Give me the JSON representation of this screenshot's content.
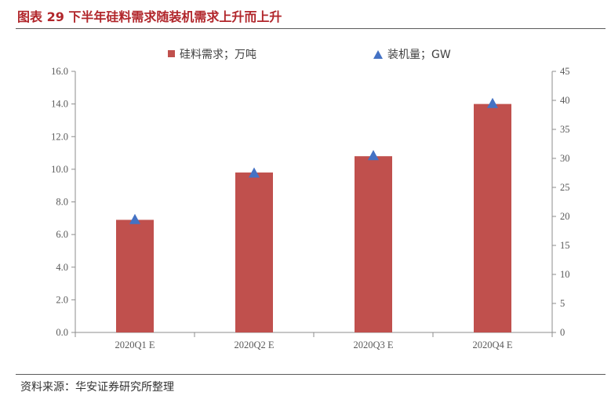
{
  "header": {
    "title": "图表 29 下半年硅料需求随装机需求上升而上升"
  },
  "footer": {
    "source": "资料来源：华安证券研究所整理"
  },
  "chart_data": {
    "type": "bar",
    "categories": [
      "2020Q1 E",
      "2020Q2 E",
      "2020Q3 E",
      "2020Q4 E"
    ],
    "series": [
      {
        "name": "硅料需求；万吨",
        "type": "bar",
        "axis": "left",
        "color": "#c0504d",
        "values": [
          6.9,
          9.8,
          10.8,
          14.0
        ]
      },
      {
        "name": "装机量；GW",
        "type": "scatter",
        "marker": "triangle",
        "axis": "right",
        "color": "#4472c4",
        "values": [
          19.5,
          27.5,
          30.5,
          39.5
        ]
      }
    ],
    "y_left": {
      "ylim": [
        0,
        16
      ],
      "ticks": [
        0,
        2,
        4,
        6,
        8,
        10,
        12,
        14,
        16
      ],
      "tick_labels": [
        "0.0",
        "2.0",
        "4.0",
        "6.0",
        "8.0",
        "10.0",
        "12.0",
        "14.0",
        "16.0"
      ]
    },
    "y_right": {
      "ylim": [
        0,
        45
      ],
      "ticks": [
        0,
        5,
        10,
        15,
        20,
        25,
        30,
        35,
        40,
        45
      ],
      "tick_labels": [
        "0",
        "5",
        "10",
        "15",
        "20",
        "25",
        "30",
        "35",
        "40",
        "45"
      ]
    },
    "grid": false,
    "legend_position": "top-center"
  }
}
